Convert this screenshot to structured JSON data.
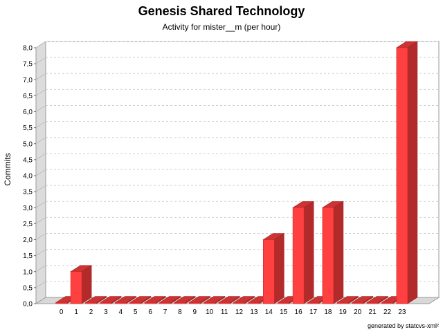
{
  "chart_data": {
    "type": "bar",
    "title": "Genesis Shared Technology",
    "subtitle": "Activity for mister__m (per hour)",
    "ylabel": "Commits",
    "categories": [
      "0",
      "1",
      "2",
      "3",
      "4",
      "5",
      "6",
      "7",
      "8",
      "9",
      "10",
      "11",
      "12",
      "13",
      "14",
      "15",
      "16",
      "17",
      "18",
      "19",
      "20",
      "21",
      "22",
      "23"
    ],
    "values": [
      0,
      1,
      0,
      0,
      0,
      0,
      0,
      0,
      0,
      0,
      0,
      0,
      0,
      0,
      2,
      0,
      3,
      0,
      3,
      0,
      0,
      0,
      0,
      8
    ],
    "ylim": [
      0,
      8.0
    ],
    "yticks": [
      "0,0",
      "0,5",
      "1,0",
      "1,5",
      "2,0",
      "2,5",
      "3,0",
      "3,5",
      "4,0",
      "4,5",
      "5,0",
      "5,5",
      "6,0",
      "6,5",
      "7,0",
      "7,5",
      "8,0"
    ],
    "grid": true,
    "bar_color": "#ff4040",
    "footer": "generated by statcvs-xml²"
  }
}
